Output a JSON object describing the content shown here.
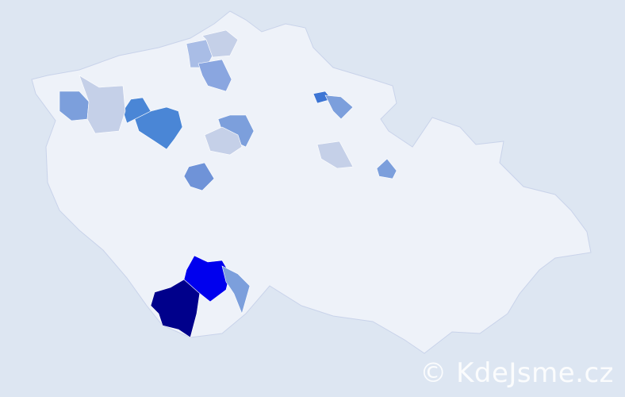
{
  "map": {
    "background_color": "#dde6f2",
    "land_color": "#eef2f9",
    "border_color": "#c9d3ea",
    "highlighted_districts": [
      {
        "color": "#00008b"
      },
      {
        "color": "#0000ee"
      },
      {
        "color": "#7c9fdc"
      },
      {
        "color": "#4a86d6"
      },
      {
        "color": "#4a86d6"
      },
      {
        "color": "#7c9fdc"
      },
      {
        "color": "#c5d0e8"
      },
      {
        "color": "#a9bde6"
      },
      {
        "color": "#c5d0e8"
      },
      {
        "color": "#8aa6e0"
      },
      {
        "color": "#7c9fdc"
      },
      {
        "color": "#c5d0e8"
      },
      {
        "color": "#6f93d8"
      },
      {
        "color": "#3d75d4"
      },
      {
        "color": "#7c9fdc"
      },
      {
        "color": "#c5d0e8"
      },
      {
        "color": "#7c9fdc"
      }
    ]
  },
  "watermark": "© KdeJsme.cz"
}
